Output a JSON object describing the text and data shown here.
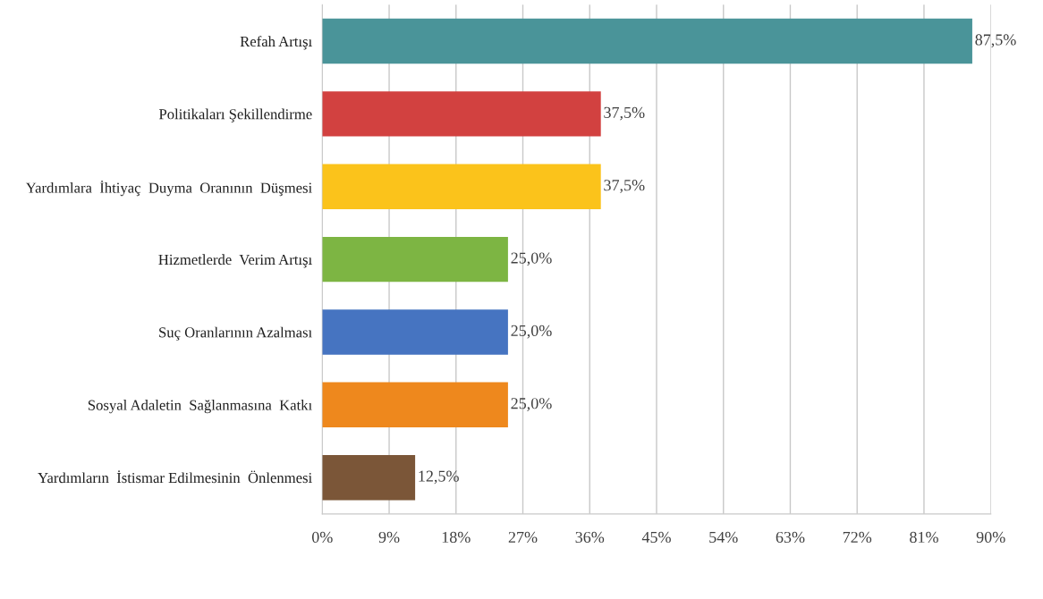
{
  "chart_data": {
    "type": "bar",
    "orientation": "horizontal",
    "categories": [
      "Refah Artışı",
      "Politikaları Şekillendirme",
      "Yardımlara  İhtiyaç  Duyma  Oranının  Düşmesi",
      "Hizmetlerde  Verim Artışı",
      "Suç Oranlarının Azalması",
      "Sosyal Adaletin  Sağlanmasına  Katkı",
      "Yardımların  İstismar Edilmesinin  Önlenmesi"
    ],
    "values": [
      87.5,
      37.5,
      37.5,
      25.0,
      25.0,
      25.0,
      12.5
    ],
    "colors": [
      "#4a9499",
      "#d24140",
      "#fbc31b",
      "#7db543",
      "#4674c1",
      "#ee881d",
      "#7b5638"
    ],
    "value_labels": [
      "87,5%",
      "37,5%",
      "37,5%",
      "25,0%",
      "25,0%",
      "25,0%",
      "12,5%"
    ],
    "xlim": [
      0,
      90
    ],
    "xticks": [
      {
        "value": 0,
        "label": "0%"
      },
      {
        "value": 9,
        "label": "9%"
      },
      {
        "value": 18,
        "label": "18%"
      },
      {
        "value": 27,
        "label": "27%"
      },
      {
        "value": 36,
        "label": "36%"
      },
      {
        "value": 45,
        "label": "45%"
      },
      {
        "value": 54,
        "label": "54%"
      },
      {
        "value": 63,
        "label": "63%"
      },
      {
        "value": 72,
        "label": "72%"
      },
      {
        "value": 81,
        "label": "81%"
      },
      {
        "value": 90,
        "label": "90%"
      }
    ],
    "grid": "x",
    "legend": false
  }
}
